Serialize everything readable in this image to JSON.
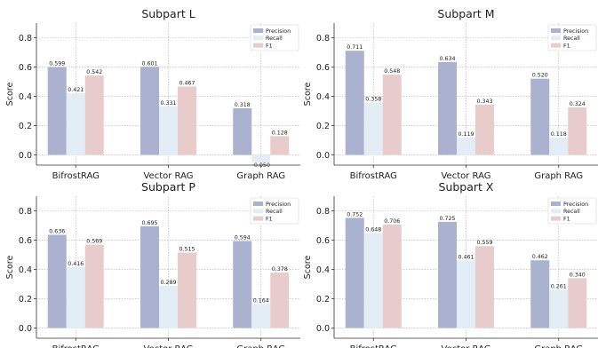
{
  "colors": {
    "precision": "#aab2cf",
    "recall": "#e3edf6",
    "f1": "#e8cccc",
    "grid": "#b0b0b0",
    "axis": "#333333"
  },
  "chart_data": [
    {
      "type": "bar",
      "title": "Subpart L",
      "ylabel": "Score",
      "ylim": [
        -0.07,
        0.9
      ],
      "yticks": [
        "0.0",
        "0.2",
        "0.4",
        "0.6",
        "0.8"
      ],
      "categories": [
        "BifrostRAG",
        "Vector RAG",
        "Graph RAG"
      ],
      "legend": "top-right",
      "grid": true,
      "series": [
        {
          "name": "Precision",
          "values": [
            0.599,
            0.601,
            0.318
          ],
          "labels": [
            "0.599",
            "0.601",
            "0.318"
          ]
        },
        {
          "name": "Recall",
          "values": [
            0.421,
            0.331,
            -0.05
          ],
          "labels": [
            "0.421",
            "0.331",
            "-0.050"
          ]
        },
        {
          "name": "F1",
          "values": [
            0.542,
            0.467,
            0.128
          ],
          "labels": [
            "0.542",
            "0.467",
            "0.128"
          ]
        }
      ]
    },
    {
      "type": "bar",
      "title": "Subpart M",
      "ylabel": "Score",
      "ylim": [
        -0.07,
        0.9
      ],
      "yticks": [
        "0.0",
        "0.2",
        "0.4",
        "0.6",
        "0.8"
      ],
      "categories": [
        "BifrostRAG",
        "Vector RAG",
        "Graph RAG"
      ],
      "legend": "top-right",
      "grid": true,
      "series": [
        {
          "name": "Precision",
          "values": [
            0.711,
            0.634,
            0.52
          ],
          "labels": [
            "0.711",
            "0.634",
            "0.520"
          ]
        },
        {
          "name": "Recall",
          "values": [
            0.358,
            0.119,
            0.118
          ],
          "labels": [
            "0.358",
            "0.119",
            "0.118"
          ]
        },
        {
          "name": "F1",
          "values": [
            0.548,
            0.343,
            0.324
          ],
          "labels": [
            "0.548",
            "0.343",
            "0.324"
          ]
        }
      ]
    },
    {
      "type": "bar",
      "title": "Subpart P",
      "ylabel": "Score",
      "ylim": [
        -0.07,
        0.9
      ],
      "yticks": [
        "0.0",
        "0.2",
        "0.4",
        "0.6",
        "0.8"
      ],
      "categories": [
        "BifrostRAG",
        "Vector RAG",
        "Graph RAG"
      ],
      "legend": "top-right",
      "grid": true,
      "series": [
        {
          "name": "Precision",
          "values": [
            0.636,
            0.695,
            0.594
          ],
          "labels": [
            "0.636",
            "0.695",
            "0.594"
          ]
        },
        {
          "name": "Recall",
          "values": [
            0.416,
            0.289,
            0.164
          ],
          "labels": [
            "0.416",
            "0.289",
            "0.164"
          ]
        },
        {
          "name": "F1",
          "values": [
            0.569,
            0.515,
            0.378
          ],
          "labels": [
            "0.569",
            "0.515",
            "0.378"
          ]
        }
      ]
    },
    {
      "type": "bar",
      "title": "Subpart X",
      "ylabel": "Score",
      "ylim": [
        -0.07,
        0.9
      ],
      "yticks": [
        "0.0",
        "0.2",
        "0.4",
        "0.6",
        "0.8"
      ],
      "categories": [
        "BifrostRAG",
        "Vector RAG",
        "Graph RAG"
      ],
      "legend": "top-right",
      "grid": true,
      "series": [
        {
          "name": "Precision",
          "values": [
            0.752,
            0.725,
            0.462
          ],
          "labels": [
            "0.752",
            "0.725",
            "0.462"
          ]
        },
        {
          "name": "Recall",
          "values": [
            0.648,
            0.461,
            0.261
          ],
          "labels": [
            "0.648",
            "0.461",
            "0.261"
          ]
        },
        {
          "name": "F1",
          "values": [
            0.706,
            0.559,
            0.34
          ],
          "labels": [
            "0.706",
            "0.559",
            "0.340"
          ]
        }
      ]
    }
  ]
}
